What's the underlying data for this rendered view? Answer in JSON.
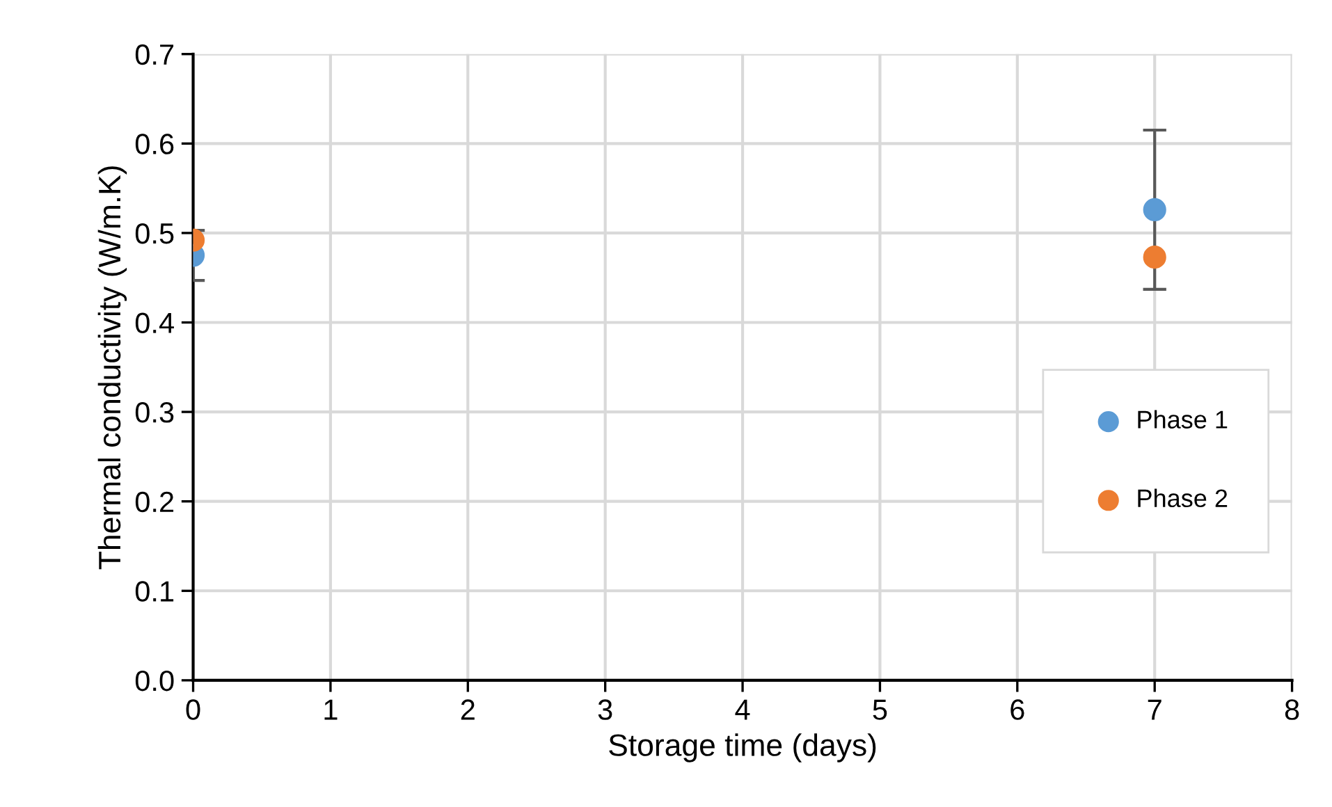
{
  "chart_data": {
    "type": "scatter",
    "xlabel": "Storage time (days)",
    "ylabel": "Thermal conductivity (W/m.K)",
    "x": [
      0,
      7
    ],
    "series": [
      {
        "name": "Phase 1",
        "color": "#5b9bd5",
        "values": [
          0.475,
          0.526
        ],
        "errors": [
          0.028,
          0.089
        ]
      },
      {
        "name": "Phase 2",
        "color": "#ed7d31",
        "values": [
          0.492,
          0.473
        ]
      }
    ],
    "xlim": [
      0,
      8
    ],
    "xticks": [
      0,
      1,
      2,
      3,
      4,
      5,
      6,
      7,
      8
    ],
    "ylim": [
      0,
      0.7
    ],
    "yticks": [
      {
        "value": 0,
        "label": "0.0"
      },
      {
        "value": 0.1,
        "label": "0.1"
      },
      {
        "value": 0.2,
        "label": "0.2"
      },
      {
        "value": 0.3,
        "label": "0.3"
      },
      {
        "value": 0.4,
        "label": "0.4"
      },
      {
        "value": 0.5,
        "label": "0.5"
      },
      {
        "value": 0.6,
        "label": "0.6"
      },
      {
        "value": 0.7,
        "label": "0.7"
      }
    ],
    "grid": true,
    "legend": "right",
    "marker": "circle"
  }
}
